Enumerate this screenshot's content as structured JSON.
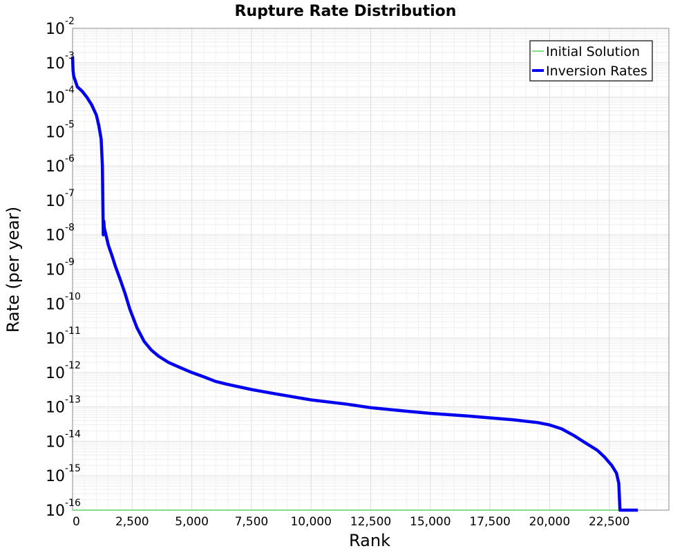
{
  "chart_data": {
    "type": "line",
    "title": "Rupture Rate Distribution",
    "xlabel": "Rank",
    "ylabel": "Rate (per year)",
    "xlim": [
      0,
      25000
    ],
    "ylim": [
      1e-16,
      0.01
    ],
    "yscale": "log",
    "grid": true,
    "legend_position": "top-right",
    "x_ticks": [
      0,
      2500,
      5000,
      7500,
      10000,
      12500,
      15000,
      17500,
      20000,
      22500
    ],
    "x_tick_labels": [
      "0",
      "2,500",
      "5,000",
      "7,500",
      "10,000",
      "12,500",
      "15,000",
      "17,500",
      "20,000",
      "22,500"
    ],
    "y_ticks": [
      {
        "base": "10",
        "exp": "-16"
      },
      {
        "base": "10",
        "exp": "-15"
      },
      {
        "base": "10",
        "exp": "-14"
      },
      {
        "base": "10",
        "exp": "-13"
      },
      {
        "base": "10",
        "exp": "-12"
      },
      {
        "base": "10",
        "exp": "-11"
      },
      {
        "base": "10",
        "exp": "-10"
      },
      {
        "base": "10",
        "exp": "-9"
      },
      {
        "base": "10",
        "exp": "-8"
      },
      {
        "base": "10",
        "exp": "-7"
      },
      {
        "base": "10",
        "exp": "-6"
      },
      {
        "base": "10",
        "exp": "-5"
      },
      {
        "base": "10",
        "exp": "-4"
      },
      {
        "base": "10",
        "exp": "-3"
      },
      {
        "base": "10",
        "exp": "-2"
      }
    ],
    "series": [
      {
        "name": "Initial Solution",
        "color": "#5fcf5f",
        "x": [
          0,
          23700
        ],
        "y": [
          1e-16,
          1e-16
        ]
      },
      {
        "name": "Inversion Rates",
        "color": "#0000ee",
        "x": [
          0,
          20,
          50,
          100,
          200,
          400,
          600,
          800,
          1000,
          1100,
          1200,
          1250,
          1270,
          1290,
          1310,
          1330,
          1400,
          1500,
          1650,
          1800,
          2000,
          2200,
          2400,
          2700,
          3000,
          3300,
          3600,
          4000,
          4500,
          5000,
          5500,
          6000,
          6500,
          7500,
          8500,
          10000,
          11500,
          12500,
          14000,
          15000,
          16500,
          17500,
          18500,
          19500,
          20000,
          20500,
          21000,
          21500,
          22000,
          22300,
          22600,
          22800,
          22900,
          22950,
          23000,
          23100,
          23700
        ],
        "y": [
          0.0015,
          0.0006,
          0.0004,
          0.00032,
          0.0002,
          0.00015,
          0.0001,
          6e-05,
          3e-05,
          1.5e-05,
          6e-06,
          1e-06,
          1e-07,
          1e-08,
          2.5e-08,
          1.6e-08,
          1e-08,
          5e-09,
          2.5e-09,
          1.2e-09,
          5e-10,
          2e-10,
          7e-11,
          2e-11,
          8e-12,
          4.5e-12,
          3e-12,
          2e-12,
          1.4e-12,
          1e-12,
          7.5e-13,
          5.5e-13,
          4.5e-13,
          3.2e-13,
          2.4e-13,
          1.6e-13,
          1.2e-13,
          9.5e-14,
          7.5e-14,
          6.5e-14,
          5.5e-14,
          4.8e-14,
          4.2e-14,
          3.5e-14,
          3e-14,
          2.3e-14,
          1.5e-14,
          9e-15,
          5.5e-15,
          3.5e-15,
          2e-15,
          1.2e-15,
          6e-16,
          1e-16,
          1e-16,
          1e-16,
          1e-16
        ]
      }
    ]
  }
}
